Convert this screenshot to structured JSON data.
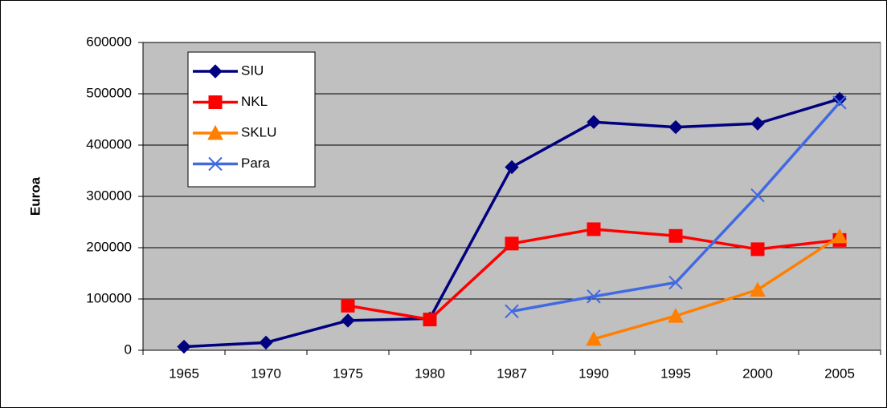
{
  "chart_data": {
    "type": "line",
    "ylabel": "Euroa",
    "categories": [
      "1965",
      "1970",
      "1975",
      "1980",
      "1987",
      "1990",
      "1995",
      "2000",
      "2005"
    ],
    "series": [
      {
        "name": "SIU",
        "color": "#000080",
        "marker": "diamond",
        "values": [
          7000,
          15000,
          58000,
          62000,
          357000,
          445000,
          435000,
          442000,
          490000
        ]
      },
      {
        "name": "NKL",
        "color": "#ff0000",
        "marker": "square",
        "values": [
          null,
          null,
          87000,
          60000,
          208000,
          236000,
          223000,
          197000,
          215000
        ]
      },
      {
        "name": "SKLU",
        "color": "#ff8000",
        "marker": "triangle",
        "values": [
          null,
          null,
          null,
          null,
          null,
          22000,
          67000,
          118000,
          222000
        ]
      },
      {
        "name": "Para",
        "color": "#4169e1",
        "marker": "x",
        "values": [
          null,
          null,
          null,
          null,
          76000,
          105000,
          132000,
          302000,
          483000
        ]
      }
    ],
    "ylim": [
      0,
      600000
    ],
    "yticks": [
      0,
      100000,
      200000,
      300000,
      400000,
      500000,
      600000
    ],
    "grid": true,
    "legend": "top-left",
    "plot_background": "#c0c0c0"
  }
}
